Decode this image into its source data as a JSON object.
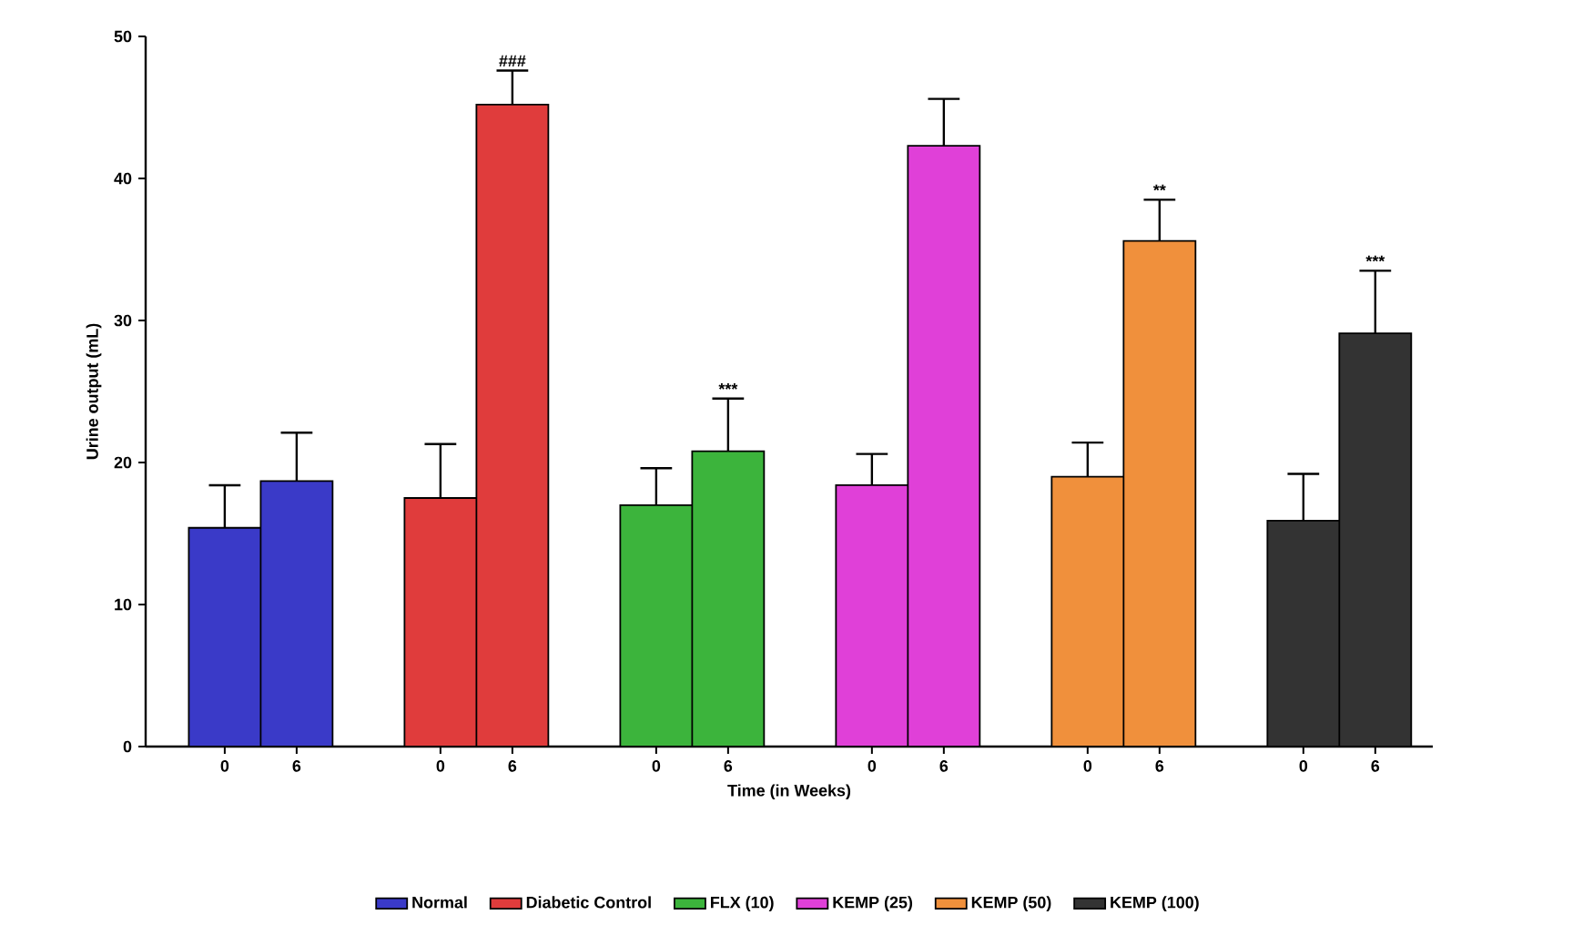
{
  "chart_data": {
    "type": "bar",
    "xlabel": "Time (in Weeks)",
    "ylabel": "Urine output (mL)",
    "categories": [
      "0",
      "6",
      "0",
      "6",
      "0",
      "6",
      "0",
      "6",
      "0",
      "6",
      "0",
      "6"
    ],
    "series": [
      {
        "name": "Normal",
        "color": "#3a3ac8",
        "values": [
          15.4,
          18.7,
          null,
          null,
          null,
          null,
          null,
          null,
          null,
          null,
          null,
          null
        ],
        "errors": [
          [
            15.4,
            18.4
          ],
          [
            18.7,
            22.1
          ],
          null,
          null,
          null,
          null,
          null,
          null,
          null,
          null,
          null,
          null
        ]
      },
      {
        "name": "Diabetic Control",
        "color": "#e03c3c",
        "values": [
          null,
          null,
          17.5,
          45.2,
          null,
          null,
          null,
          null,
          null,
          null,
          null,
          null
        ],
        "errors": [
          null,
          null,
          [
            17.5,
            21.3
          ],
          [
            45.2,
            47.6
          ],
          null,
          null,
          null,
          null,
          null,
          null,
          null,
          null
        ]
      },
      {
        "name": "FLX  (10)",
        "color": "#3cb43c",
        "values": [
          null,
          null,
          null,
          null,
          17.0,
          20.8,
          null,
          null,
          null,
          null,
          null,
          null
        ],
        "errors": [
          null,
          null,
          null,
          null,
          [
            17.0,
            19.6
          ],
          [
            20.8,
            24.5
          ],
          null,
          null,
          null,
          null,
          null,
          null
        ]
      },
      {
        "name": "KEMP (25)",
        "color": "#e040d8",
        "values": [
          null,
          null,
          null,
          null,
          null,
          null,
          18.4,
          42.3,
          null,
          null,
          null,
          null
        ],
        "errors": [
          null,
          null,
          null,
          null,
          null,
          null,
          [
            18.4,
            20.6
          ],
          [
            42.3,
            45.6
          ],
          null,
          null,
          null,
          null
        ]
      },
      {
        "name": "KEMP (50)",
        "color": "#f0903c",
        "values": [
          null,
          null,
          null,
          null,
          null,
          null,
          null,
          null,
          19.0,
          35.6,
          null,
          null
        ],
        "errors": [
          null,
          null,
          null,
          null,
          null,
          null,
          null,
          null,
          [
            19.0,
            21.4
          ],
          [
            35.6,
            38.5
          ],
          null,
          null
        ]
      },
      {
        "name": "KEMP (100)",
        "color": "#333333",
        "values": [
          null,
          null,
          null,
          null,
          null,
          null,
          null,
          null,
          null,
          null,
          15.9,
          29.1
        ],
        "errors": [
          null,
          null,
          null,
          null,
          null,
          null,
          null,
          null,
          null,
          null,
          [
            15.9,
            19.2
          ],
          [
            29.1,
            33.5
          ]
        ]
      }
    ],
    "annotations": [
      "###",
      "***",
      "**",
      "***"
    ],
    "ylim": [
      0,
      50
    ],
    "yticks": [
      0,
      10,
      20,
      30,
      40,
      50
    ],
    "grid": false,
    "legend": "bottom"
  }
}
